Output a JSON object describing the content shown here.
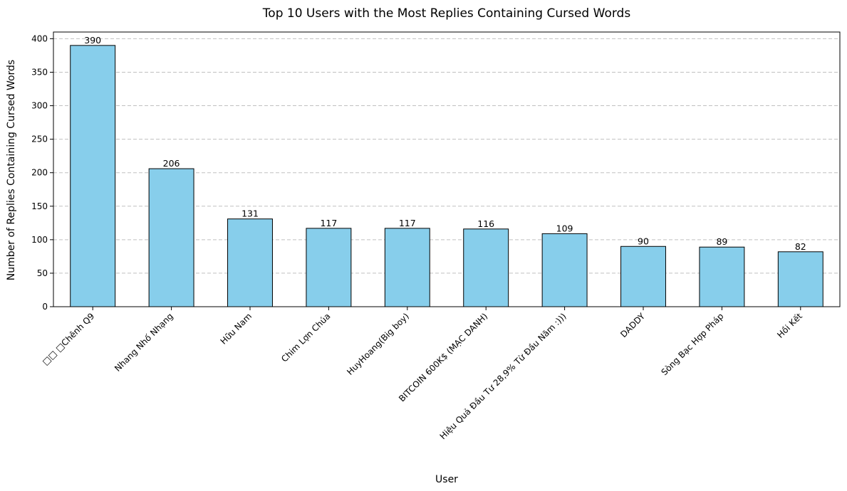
{
  "chart_data": {
    "type": "bar",
    "title": "Top 10 Users with the Most Replies Containing Cursed Words",
    "xlabel": "User",
    "ylabel": "Number of Replies Containing Cursed Words",
    "categories": [
      "□□ □Chênh Q9",
      "Nhang Nhố Nhạng",
      "Hữu Nam",
      "Chim Lợn Chúa",
      "HuyHoang(Big boy)",
      "BITCOIN 600K$ (MẠC DANH)",
      "Hiệu Quả Đầu Tư 28,9% Từ Đầu Năm :)))",
      "DADDY",
      "Sòng Bạc Hợp Pháp",
      "Hồi Kết"
    ],
    "values": [
      390,
      206,
      131,
      117,
      117,
      116,
      109,
      90,
      89,
      82
    ],
    "ylim": [
      0,
      410
    ],
    "yticks": [
      0,
      50,
      100,
      150,
      200,
      250,
      300,
      350,
      400
    ],
    "grid": "y-dashed",
    "bar_color": "#87CEEB",
    "bar_edge_color": "#000000",
    "grid_color": "#c0c0c0"
  }
}
